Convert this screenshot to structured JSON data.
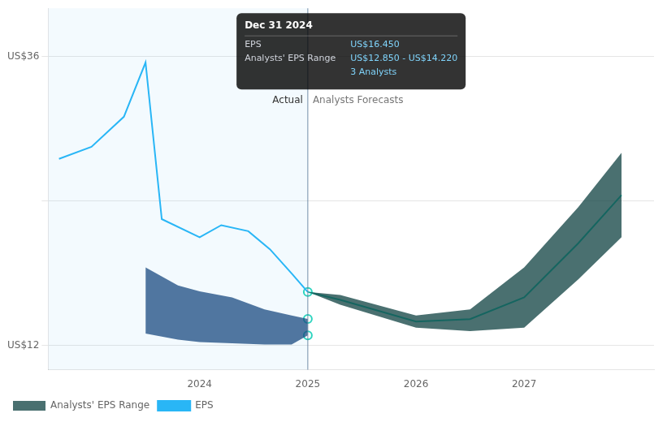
{
  "chart_data": {
    "type": "line",
    "xlim": [
      2022.6,
      2028.2
    ],
    "xticks": [
      2024,
      2025,
      2026,
      2027
    ],
    "ylim": [
      10,
      40
    ],
    "yticks": [
      {
        "value": 12,
        "label": "US$12"
      },
      {
        "value": 24,
        "label": null
      },
      {
        "value": 36,
        "label": "US$36"
      }
    ],
    "grid": "y",
    "legend": "bottom",
    "series": [
      {
        "type": "band",
        "color": "#1a4a80",
        "x": [
          2023.5,
          2023.8,
          2024.0,
          2024.3,
          2024.6,
          2024.85,
          2025.0
        ],
        "lower": [
          13.0,
          12.5,
          12.3,
          12.2,
          12.1,
          12.1,
          12.85
        ],
        "upper": [
          18.5,
          17.0,
          16.5,
          16.0,
          15.0,
          14.5,
          14.22
        ]
      },
      {
        "type": "band",
        "name": "Analysts' EPS Range",
        "color": "#0d4040",
        "x": [
          2025.0,
          2025.3,
          2026.0,
          2026.5,
          2027.0,
          2027.5,
          2027.9
        ],
        "lower": [
          16.45,
          15.4,
          13.5,
          13.2,
          13.5,
          17.5,
          21.0
        ],
        "upper": [
          16.45,
          16.2,
          14.5,
          15.0,
          18.5,
          23.5,
          28.0
        ]
      },
      {
        "type": "line",
        "name": "EPS",
        "color": "#29b6f6",
        "x": [
          2022.7,
          2023.0,
          2023.3,
          2023.5,
          2023.65,
          2024.0,
          2024.2,
          2024.45,
          2024.65,
          2024.85,
          2025.0
        ],
        "values": [
          27.5,
          28.5,
          31.0,
          35.5,
          22.5,
          21.0,
          22.0,
          21.5,
          20.0,
          18.0,
          16.45
        ]
      },
      {
        "type": "line",
        "color": "#2dd4bf",
        "x": [
          2025.0,
          2025.3,
          2026.0,
          2026.5,
          2027.0,
          2027.5,
          2027.9
        ],
        "values": [
          16.45,
          15.8,
          14.0,
          14.2,
          16.0,
          20.5,
          24.5
        ]
      },
      {
        "type": "scatter",
        "color": "#2dd4bf",
        "marker": "circle",
        "x": [
          2025.0,
          2025.0,
          2025.0
        ],
        "values": [
          16.45,
          14.22,
          12.85
        ]
      }
    ],
    "annotations": [
      {
        "text": "Actual",
        "x": 2025.0,
        "align": "right"
      },
      {
        "text": "Analysts Forecasts",
        "x": 2025.0,
        "align": "left"
      }
    ],
    "tooltip": {
      "title": "Dec 31 2024",
      "rows": [
        [
          "EPS",
          "US$16.450"
        ],
        [
          "Analysts' EPS Range",
          "US$12.850 - US$14.220"
        ],
        [
          null,
          "3 Analysts"
        ]
      ]
    }
  }
}
